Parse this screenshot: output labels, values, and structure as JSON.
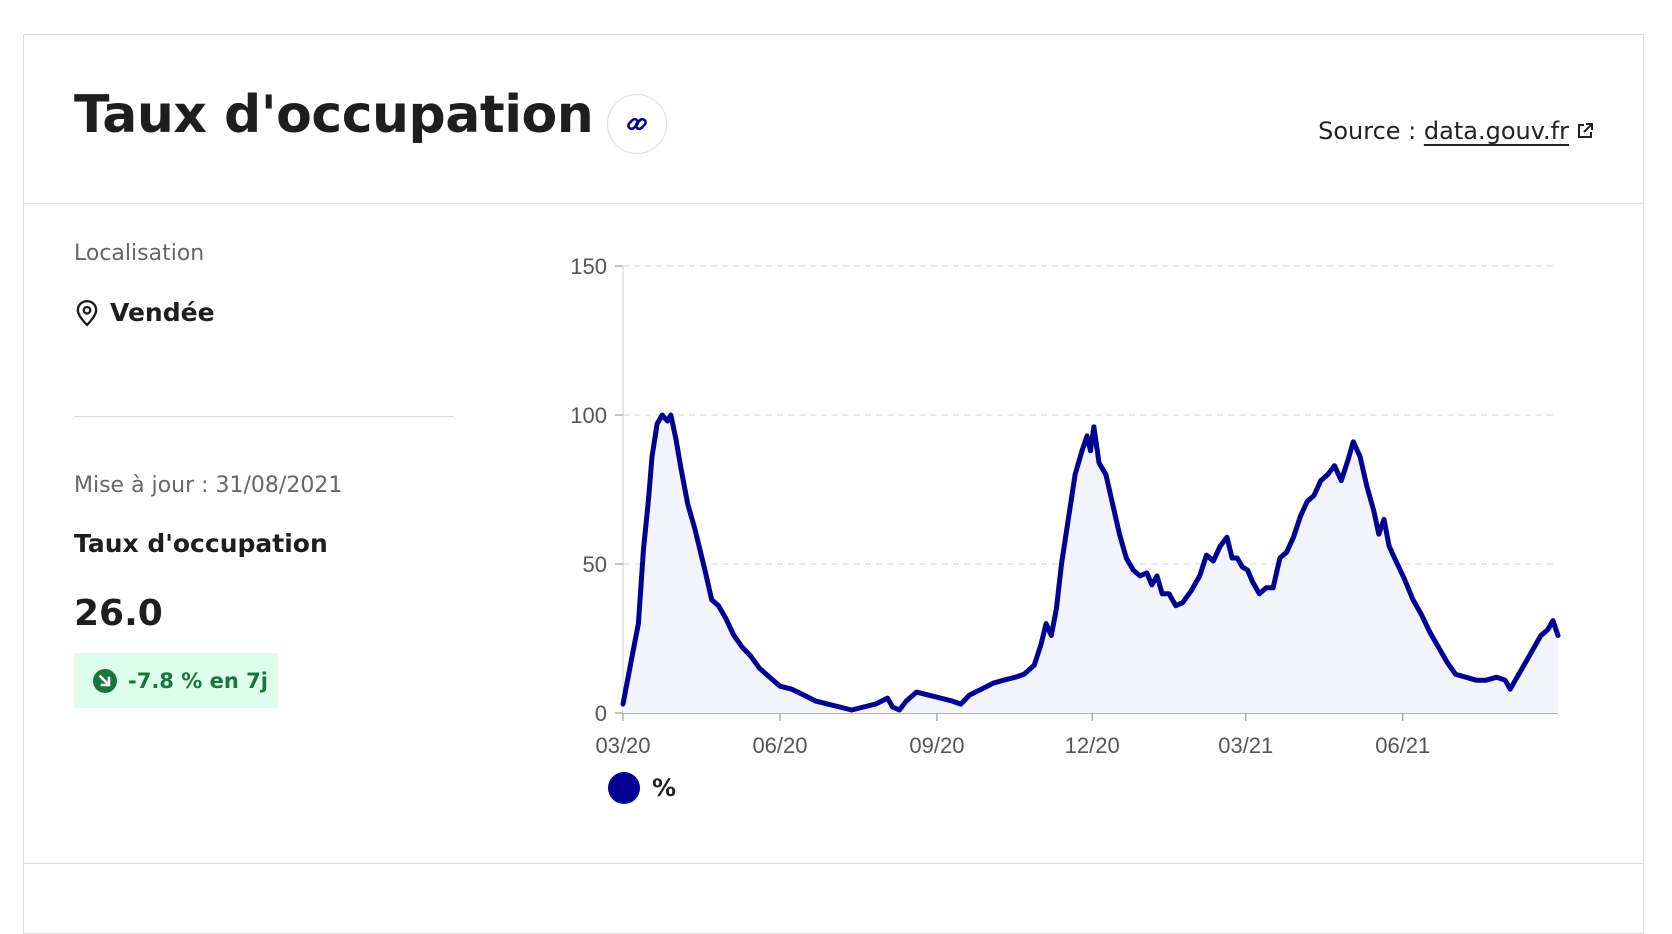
{
  "header": {
    "title": "Taux d'occupation",
    "source_label": "Source :",
    "source_link": "data.gouv.fr"
  },
  "sidebar": {
    "location_label": "Localisation",
    "location_name": "Vendée",
    "updated": "Mise à jour : 31/08/2021",
    "kpi_title": "Taux d'occupation",
    "kpi_value": "26.0",
    "trend_text": "-7.8 % en 7j"
  },
  "colors": {
    "series": "#000091",
    "area_fill": "#f3f3fc",
    "badge_bg": "#dffdeb",
    "badge_text": "#18753c"
  },
  "chart_data": {
    "type": "area",
    "title": "",
    "xlabel": "",
    "ylabel": "",
    "ylim": [
      0,
      150
    ],
    "yticks": [
      0,
      50,
      100,
      150
    ],
    "grid": true,
    "legend_position": "bottom-left",
    "x_tick_labels": [
      "03/20",
      "06/20",
      "09/20",
      "12/20",
      "03/21",
      "06/21"
    ],
    "x_tick_dates": [
      "2020-03-01",
      "2020-06-01",
      "2020-09-01",
      "2020-12-01",
      "2021-03-01",
      "2021-06-01"
    ],
    "x_range": [
      "2020-03-01",
      "2021-08-31"
    ],
    "series": [
      {
        "name": "%",
        "points": [
          [
            "2020-03-01",
            3
          ],
          [
            "2020-03-06",
            18
          ],
          [
            "2020-03-10",
            30
          ],
          [
            "2020-03-13",
            55
          ],
          [
            "2020-03-16",
            72
          ],
          [
            "2020-03-18",
            86
          ],
          [
            "2020-03-21",
            97
          ],
          [
            "2020-03-24",
            100
          ],
          [
            "2020-03-27",
            98
          ],
          [
            "2020-03-29",
            100
          ],
          [
            "2020-04-01",
            92
          ],
          [
            "2020-04-04",
            82
          ],
          [
            "2020-04-08",
            70
          ],
          [
            "2020-04-12",
            62
          ],
          [
            "2020-04-15",
            55
          ],
          [
            "2020-04-18",
            48
          ],
          [
            "2020-04-22",
            38
          ],
          [
            "2020-04-26",
            36
          ],
          [
            "2020-04-30",
            32
          ],
          [
            "2020-05-05",
            26
          ],
          [
            "2020-05-10",
            22
          ],
          [
            "2020-05-15",
            19
          ],
          [
            "2020-05-20",
            15
          ],
          [
            "2020-05-26",
            12
          ],
          [
            "2020-06-01",
            9
          ],
          [
            "2020-06-08",
            8
          ],
          [
            "2020-06-15",
            6
          ],
          [
            "2020-06-22",
            4
          ],
          [
            "2020-06-29",
            3
          ],
          [
            "2020-07-06",
            2
          ],
          [
            "2020-07-13",
            1
          ],
          [
            "2020-07-20",
            2
          ],
          [
            "2020-07-27",
            3
          ],
          [
            "2020-08-03",
            5
          ],
          [
            "2020-08-06",
            2
          ],
          [
            "2020-08-10",
            1
          ],
          [
            "2020-08-14",
            4
          ],
          [
            "2020-08-20",
            7
          ],
          [
            "2020-08-27",
            6
          ],
          [
            "2020-09-03",
            5
          ],
          [
            "2020-09-10",
            4
          ],
          [
            "2020-09-15",
            3
          ],
          [
            "2020-09-20",
            6
          ],
          [
            "2020-09-27",
            8
          ],
          [
            "2020-10-04",
            10
          ],
          [
            "2020-10-10",
            11
          ],
          [
            "2020-10-17",
            12
          ],
          [
            "2020-10-22",
            13
          ],
          [
            "2020-10-28",
            16
          ],
          [
            "2020-11-01",
            23
          ],
          [
            "2020-11-04",
            30
          ],
          [
            "2020-11-07",
            26
          ],
          [
            "2020-11-10",
            35
          ],
          [
            "2020-11-13",
            50
          ],
          [
            "2020-11-17",
            65
          ],
          [
            "2020-11-21",
            80
          ],
          [
            "2020-11-25",
            88
          ],
          [
            "2020-11-28",
            93
          ],
          [
            "2020-11-30",
            88
          ],
          [
            "2020-12-02",
            96
          ],
          [
            "2020-12-05",
            84
          ],
          [
            "2020-12-09",
            80
          ],
          [
            "2020-12-13",
            70
          ],
          [
            "2020-12-17",
            60
          ],
          [
            "2020-12-21",
            52
          ],
          [
            "2020-12-25",
            48
          ],
          [
            "2020-12-29",
            46
          ],
          [
            "2021-01-02",
            47
          ],
          [
            "2021-01-05",
            43
          ],
          [
            "2021-01-08",
            46
          ],
          [
            "2021-01-11",
            40
          ],
          [
            "2021-01-15",
            40
          ],
          [
            "2021-01-19",
            36
          ],
          [
            "2021-01-23",
            37
          ],
          [
            "2021-01-28",
            41
          ],
          [
            "2021-02-02",
            46
          ],
          [
            "2021-02-06",
            53
          ],
          [
            "2021-02-10",
            51
          ],
          [
            "2021-02-14",
            56
          ],
          [
            "2021-02-18",
            59
          ],
          [
            "2021-02-21",
            52
          ],
          [
            "2021-02-24",
            52
          ],
          [
            "2021-02-27",
            49
          ],
          [
            "2021-03-02",
            48
          ],
          [
            "2021-03-05",
            44
          ],
          [
            "2021-03-09",
            40
          ],
          [
            "2021-03-13",
            42
          ],
          [
            "2021-03-17",
            42
          ],
          [
            "2021-03-21",
            52
          ],
          [
            "2021-03-25",
            54
          ],
          [
            "2021-03-29",
            59
          ],
          [
            "2021-04-02",
            66
          ],
          [
            "2021-04-06",
            71
          ],
          [
            "2021-04-10",
            73
          ],
          [
            "2021-04-14",
            78
          ],
          [
            "2021-04-18",
            80
          ],
          [
            "2021-04-22",
            83
          ],
          [
            "2021-04-26",
            78
          ],
          [
            "2021-04-30",
            85
          ],
          [
            "2021-05-03",
            91
          ],
          [
            "2021-05-07",
            86
          ],
          [
            "2021-05-11",
            76
          ],
          [
            "2021-05-15",
            68
          ],
          [
            "2021-05-18",
            60
          ],
          [
            "2021-05-21",
            65
          ],
          [
            "2021-05-24",
            56
          ],
          [
            "2021-05-28",
            51
          ],
          [
            "2021-06-02",
            45
          ],
          [
            "2021-06-07",
            38
          ],
          [
            "2021-06-12",
            33
          ],
          [
            "2021-06-17",
            27
          ],
          [
            "2021-06-22",
            22
          ],
          [
            "2021-06-27",
            17
          ],
          [
            "2021-07-02",
            13
          ],
          [
            "2021-07-08",
            12
          ],
          [
            "2021-07-14",
            11
          ],
          [
            "2021-07-20",
            11
          ],
          [
            "2021-07-26",
            12
          ],
          [
            "2021-07-31",
            11
          ],
          [
            "2021-08-03",
            8
          ],
          [
            "2021-08-06",
            11
          ],
          [
            "2021-08-09",
            14
          ],
          [
            "2021-08-13",
            18
          ],
          [
            "2021-08-17",
            22
          ],
          [
            "2021-08-21",
            26
          ],
          [
            "2021-08-25",
            28
          ],
          [
            "2021-08-28",
            31
          ],
          [
            "2021-08-31",
            26
          ]
        ]
      }
    ]
  }
}
